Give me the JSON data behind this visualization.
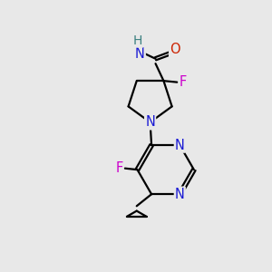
{
  "bg_color": "#e8e8e8",
  "bond_color": "#000000",
  "bond_width": 1.6,
  "atom_colors": {
    "N": "#1a1ad4",
    "O": "#cc2200",
    "F": "#cc00cc",
    "H": "#3a8080",
    "C": "#000000"
  },
  "font_size": 10.5,
  "fig_size": [
    3.0,
    3.0
  ],
  "dpi": 100
}
